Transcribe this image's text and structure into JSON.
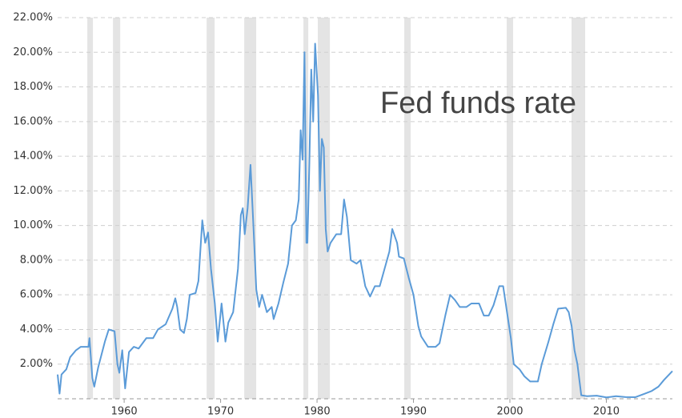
{
  "chart_data": {
    "type": "line",
    "title": "Fed funds rate",
    "color": "#5b9bd8",
    "band_color": "#e4e4e4",
    "grid": true,
    "xlim": [
      1953.1,
      2016.85
    ],
    "ylim": [
      0,
      22
    ],
    "xticks": [
      1960,
      1970,
      1980,
      1990,
      2000,
      2010
    ],
    "yticks": [
      {
        "value": 2,
        "label": "2.00%"
      },
      {
        "value": 4,
        "label": "4.00%"
      },
      {
        "value": 6,
        "label": "6.00%"
      },
      {
        "value": 8,
        "label": "8.00%"
      },
      {
        "value": 10,
        "label": "10.00%"
      },
      {
        "value": 12,
        "label": "12.00%"
      },
      {
        "value": 14,
        "label": "14.00%"
      },
      {
        "value": 16,
        "label": "16.00%"
      },
      {
        "value": 18,
        "label": "18.00%"
      },
      {
        "value": 20,
        "label": "20.00%"
      },
      {
        "value": 22,
        "label": "22.00%"
      }
    ],
    "recessions": [
      [
        1956.18,
        1956.76
      ],
      [
        1958.84,
        1959.59
      ],
      [
        1968.55,
        1969.38
      ],
      [
        1972.45,
        1973.69
      ],
      [
        1978.59,
        1979.09
      ],
      [
        1980.08,
        1981.33
      ],
      [
        1989.05,
        1989.71
      ],
      [
        1999.67,
        2000.33
      ],
      [
        2006.39,
        2007.8
      ]
    ],
    "x": [
      1953.1,
      1953.3,
      1953.5,
      1954.0,
      1954.4,
      1955.0,
      1955.5,
      1956.3,
      1956.4,
      1956.7,
      1956.9,
      1957.3,
      1958.0,
      1958.4,
      1959.0,
      1959.3,
      1959.5,
      1959.8,
      1960.1,
      1960.5,
      1961.0,
      1961.5,
      1962.3,
      1963.0,
      1963.5,
      1964.3,
      1965.0,
      1965.3,
      1965.5,
      1965.8,
      1966.2,
      1966.5,
      1966.8,
      1967.4,
      1967.7,
      1968.1,
      1968.4,
      1968.7,
      1969.0,
      1969.4,
      1969.7,
      1970.1,
      1970.5,
      1970.8,
      1971.3,
      1971.8,
      1972.1,
      1972.3,
      1972.5,
      1972.8,
      1973.1,
      1973.4,
      1973.7,
      1974.0,
      1974.3,
      1974.8,
      1975.3,
      1975.5,
      1976.0,
      1976.5,
      1977.0,
      1977.4,
      1977.8,
      1978.1,
      1978.3,
      1978.5,
      1978.7,
      1978.9,
      1979.0,
      1979.2,
      1979.4,
      1979.6,
      1979.8,
      1980.1,
      1980.3,
      1980.5,
      1980.7,
      1980.9,
      1981.1,
      1981.4,
      1982.0,
      1982.5,
      1982.8,
      1983.1,
      1983.5,
      1984.1,
      1984.5,
      1985.0,
      1985.5,
      1986.0,
      1986.5,
      1987.0,
      1987.5,
      1987.8,
      1988.3,
      1988.5,
      1989.0,
      1989.5,
      1990.0,
      1990.5,
      1990.8,
      1991.5,
      1992.3,
      1992.7,
      1993.3,
      1993.8,
      1994.3,
      1994.8,
      1995.5,
      1996.0,
      1996.8,
      1997.3,
      1997.8,
      1998.3,
      1998.9,
      1999.3,
      1999.7,
      2000.1,
      2000.4,
      2001.0,
      2001.5,
      2002.1,
      2002.9,
      2003.3,
      2004.0,
      2004.5,
      2005.0,
      2005.8,
      2006.1,
      2006.4,
      2006.7,
      2007.0,
      2007.4,
      2008.0,
      2009.0,
      2010.0,
      2011.0,
      2012.0,
      2013.0,
      2014.0,
      2014.7,
      2015.4,
      2016.0,
      2016.85
    ],
    "values": [
      1.4,
      0.3,
      1.4,
      1.7,
      2.4,
      2.8,
      3.0,
      3.0,
      3.5,
      1.2,
      0.7,
      1.8,
      3.3,
      4.0,
      3.9,
      2.0,
      1.5,
      2.8,
      0.6,
      2.7,
      3.0,
      2.9,
      3.5,
      3.5,
      4.0,
      4.3,
      5.2,
      5.8,
      5.3,
      4.0,
      3.8,
      4.6,
      6.0,
      6.1,
      6.8,
      10.3,
      9.0,
      9.6,
      7.5,
      5.5,
      3.3,
      5.5,
      3.3,
      4.4,
      5.0,
      7.5,
      10.6,
      11.0,
      9.5,
      11.0,
      13.5,
      10.0,
      6.3,
      5.3,
      6.0,
      5.0,
      5.3,
      4.6,
      5.5,
      6.7,
      7.8,
      10.0,
      10.3,
      11.5,
      15.5,
      13.8,
      20.0,
      9.0,
      9.0,
      13.5,
      19.0,
      16.0,
      20.5,
      17.5,
      12.0,
      15.0,
      14.5,
      9.8,
      8.5,
      9.0,
      9.5,
      9.5,
      11.5,
      10.5,
      8.0,
      7.8,
      8.0,
      6.5,
      5.9,
      6.5,
      6.5,
      7.5,
      8.5,
      9.8,
      9.0,
      8.2,
      8.1,
      7.0,
      6.0,
      4.2,
      3.6,
      3.0,
      3.0,
      3.2,
      4.8,
      6.0,
      5.7,
      5.3,
      5.3,
      5.5,
      5.5,
      4.8,
      4.8,
      5.4,
      6.5,
      6.5,
      5.0,
      3.5,
      2.0,
      1.7,
      1.3,
      1.0,
      1.0,
      2.0,
      3.3,
      4.3,
      5.2,
      5.25,
      5.0,
      4.2,
      2.8,
      2.0,
      0.2,
      0.15,
      0.18,
      0.08,
      0.15,
      0.1,
      0.09,
      0.3,
      0.45,
      0.7,
      1.1,
      1.6
    ]
  }
}
